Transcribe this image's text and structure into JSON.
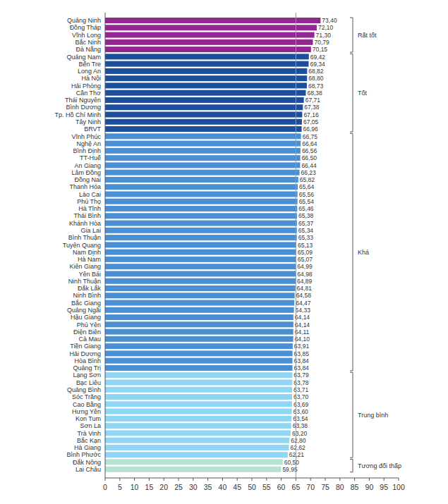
{
  "chart_data": {
    "type": "bar",
    "orientation": "horizontal",
    "data_labels": true,
    "grid": false,
    "legend": "right",
    "xlim": [
      0,
      100
    ],
    "xticks": [
      0,
      5,
      10,
      15,
      20,
      25,
      30,
      35,
      40,
      45,
      50,
      55,
      60,
      65,
      70,
      75,
      80,
      85,
      90,
      95,
      100
    ],
    "reference_value": 65,
    "categories": [
      "Quảng Ninh",
      "Đồng Tháp",
      "Vĩnh Long",
      "Bắc Ninh",
      "Đà Nẵng",
      "Quảng Nam",
      "Bến Tre",
      "Long An",
      "Hà Nội",
      "Hải Phòng",
      "Cần Thơ",
      "Thái Nguyên",
      "Bình Dương",
      "Tp. Hồ Chí Minh",
      "Tây Ninh",
      "BRVT",
      "Vĩnh Phúc",
      "Nghệ An",
      "Bình Định",
      "TT-Huế",
      "An Giang",
      "Lâm Đồng",
      "Đồng Nai",
      "Thanh Hóa",
      "Lào Cai",
      "Phú Thọ",
      "Hà Tĩnh",
      "Thái Bình",
      "Khánh Hòa",
      "Gia Lai",
      "Bình Thuận",
      "Tuyên Quang",
      "Nam Định",
      "Hà Nam",
      "Kiên Giang",
      "Yên Bái",
      "Ninh Thuận",
      "Đắk Lắk",
      "Ninh Bình",
      "Bắc Giang",
      "Quảng Ngãi",
      "Hậu Giang",
      "Phú Yên",
      "Điện Biên",
      "Cà Mau",
      "Tiền Giang",
      "Hải Dương",
      "Hòa Bình",
      "Quảng Trị",
      "Lạng Sơn",
      "Bạc Liêu",
      "Quảng Bình",
      "Sóc Trăng",
      "Cao Bằng",
      "Hưng Yên",
      "Kon Tum",
      "Sơn La",
      "Trà Vinh",
      "Bắc Kạn",
      "Hà Giang",
      "Bình Phước",
      "Đắk Nông",
      "Lai Châu"
    ],
    "series": [
      {
        "name": "Rất tốt",
        "color": "#92278f",
        "values": [
          73.4,
          72.1,
          71.3,
          70.79,
          70.15,
          null,
          null,
          null,
          null,
          null,
          null,
          null,
          null,
          null,
          null,
          null,
          null,
          null,
          null,
          null,
          null,
          null,
          null,
          null,
          null,
          null,
          null,
          null,
          null,
          null,
          null,
          null,
          null,
          null,
          null,
          null,
          null,
          null,
          null,
          null,
          null,
          null,
          null,
          null,
          null,
          null,
          null,
          null,
          null,
          null,
          null,
          null,
          null,
          null,
          null,
          null,
          null,
          null,
          null,
          null,
          null,
          null,
          null
        ],
        "value_labels": [
          "73,40",
          "72,10",
          "71,30",
          "70,79",
          "70,15",
          null,
          null,
          null,
          null,
          null,
          null,
          null,
          null,
          null,
          null,
          null,
          null,
          null,
          null,
          null,
          null,
          null,
          null,
          null,
          null,
          null,
          null,
          null,
          null,
          null,
          null,
          null,
          null,
          null,
          null,
          null,
          null,
          null,
          null,
          null,
          null,
          null,
          null,
          null,
          null,
          null,
          null,
          null,
          null,
          null,
          null,
          null,
          null,
          null,
          null,
          null,
          null,
          null,
          null,
          null,
          null,
          null,
          null
        ]
      },
      {
        "name": "Tốt",
        "color": "#1b4f9c",
        "values": [
          null,
          null,
          null,
          null,
          null,
          69.42,
          69.34,
          68.82,
          68.8,
          68.73,
          68.38,
          67.71,
          67.38,
          67.16,
          67.05,
          66.96,
          null,
          null,
          null,
          null,
          null,
          null,
          null,
          null,
          null,
          null,
          null,
          null,
          null,
          null,
          null,
          null,
          null,
          null,
          null,
          null,
          null,
          null,
          null,
          null,
          null,
          null,
          null,
          null,
          null,
          null,
          null,
          null,
          null,
          null,
          null,
          null,
          null,
          null,
          null,
          null,
          null,
          null,
          null,
          null,
          null,
          null,
          null
        ],
        "value_labels": [
          null,
          null,
          null,
          null,
          null,
          "69,42",
          "69,34",
          "68,82",
          "68,80",
          "68,73",
          "68,38",
          "67,71",
          "67,38",
          "67,16",
          "67,05",
          "66,96",
          null,
          null,
          null,
          null,
          null,
          null,
          null,
          null,
          null,
          null,
          null,
          null,
          null,
          null,
          null,
          null,
          null,
          null,
          null,
          null,
          null,
          null,
          null,
          null,
          null,
          null,
          null,
          null,
          null,
          null,
          null,
          null,
          null,
          null,
          null,
          null,
          null,
          null,
          null,
          null,
          null,
          null,
          null,
          null,
          null,
          null,
          null
        ]
      },
      {
        "name": "Khá",
        "color": "#4a8fd4",
        "values": [
          null,
          null,
          null,
          null,
          null,
          null,
          null,
          null,
          null,
          null,
          null,
          null,
          null,
          null,
          null,
          null,
          66.75,
          66.64,
          66.56,
          66.5,
          66.44,
          66.23,
          65.82,
          65.64,
          65.56,
          65.54,
          65.46,
          65.38,
          65.37,
          65.34,
          65.33,
          65.13,
          65.09,
          65.07,
          64.99,
          64.98,
          64.89,
          64.81,
          64.58,
          64.47,
          64.33,
          64.14,
          64.14,
          64.11,
          64.1,
          63.91,
          63.85,
          63.84,
          63.84,
          null,
          null,
          null,
          null,
          null,
          null,
          null,
          null,
          null,
          null,
          null,
          null,
          null,
          null
        ],
        "value_labels": [
          null,
          null,
          null,
          null,
          null,
          null,
          null,
          null,
          null,
          null,
          null,
          null,
          null,
          null,
          null,
          null,
          "66,75",
          "66,64",
          "66,56",
          "66,50",
          "66,44",
          "66,23",
          "65,82",
          "65,64",
          "65,56",
          "65,54",
          "65,46",
          "65,38",
          "65,37",
          "65,34",
          "65,33",
          "65,13",
          "65,09",
          "65,07",
          "64,99",
          "64,98",
          "64,89",
          "64,81",
          "64,58",
          "64,47",
          "64,33",
          "64,14",
          "64,14",
          "64,11",
          "64,10",
          "63,91",
          "63,85",
          "63,84",
          "63,84",
          null,
          null,
          null,
          null,
          null,
          null,
          null,
          null,
          null,
          null,
          null,
          null,
          null,
          null
        ]
      },
      {
        "name": "Trung bình",
        "color": "#8fd6f5",
        "values": [
          null,
          null,
          null,
          null,
          null,
          null,
          null,
          null,
          null,
          null,
          null,
          null,
          null,
          null,
          null,
          null,
          null,
          null,
          null,
          null,
          null,
          null,
          null,
          null,
          null,
          null,
          null,
          null,
          null,
          null,
          null,
          null,
          null,
          null,
          null,
          null,
          null,
          null,
          null,
          null,
          null,
          null,
          null,
          null,
          null,
          null,
          null,
          null,
          null,
          63.79,
          63.78,
          63.71,
          63.7,
          63.69,
          63.6,
          63.54,
          63.38,
          63.2,
          62.8,
          62.62,
          62.21,
          null,
          null
        ],
        "value_labels": [
          null,
          null,
          null,
          null,
          null,
          null,
          null,
          null,
          null,
          null,
          null,
          null,
          null,
          null,
          null,
          null,
          null,
          null,
          null,
          null,
          null,
          null,
          null,
          null,
          null,
          null,
          null,
          null,
          null,
          null,
          null,
          null,
          null,
          null,
          null,
          null,
          null,
          null,
          null,
          null,
          null,
          null,
          null,
          null,
          null,
          null,
          null,
          null,
          null,
          "63,79",
          "63,78",
          "63,71",
          "63,70",
          "63,69",
          "63,60",
          "63,54",
          "63,38",
          "63,20",
          "62,80",
          "62,62",
          "62,21",
          null,
          null
        ]
      },
      {
        "name": "Tương đối thấp",
        "color": "#b7e2d3",
        "values": [
          null,
          null,
          null,
          null,
          null,
          null,
          null,
          null,
          null,
          null,
          null,
          null,
          null,
          null,
          null,
          null,
          null,
          null,
          null,
          null,
          null,
          null,
          null,
          null,
          null,
          null,
          null,
          null,
          null,
          null,
          null,
          null,
          null,
          null,
          null,
          null,
          null,
          null,
          null,
          null,
          null,
          null,
          null,
          null,
          null,
          null,
          null,
          null,
          null,
          null,
          null,
          null,
          null,
          null,
          null,
          null,
          null,
          null,
          null,
          null,
          null,
          60.5,
          59.95
        ],
        "value_labels": [
          null,
          null,
          null,
          null,
          null,
          null,
          null,
          null,
          null,
          null,
          null,
          null,
          null,
          null,
          null,
          null,
          null,
          null,
          null,
          null,
          null,
          null,
          null,
          null,
          null,
          null,
          null,
          null,
          null,
          null,
          null,
          null,
          null,
          null,
          null,
          null,
          null,
          null,
          null,
          null,
          null,
          null,
          null,
          null,
          null,
          null,
          null,
          null,
          null,
          null,
          null,
          null,
          null,
          null,
          null,
          null,
          null,
          null,
          null,
          null,
          null,
          "60,50",
          "59,95"
        ]
      }
    ]
  }
}
